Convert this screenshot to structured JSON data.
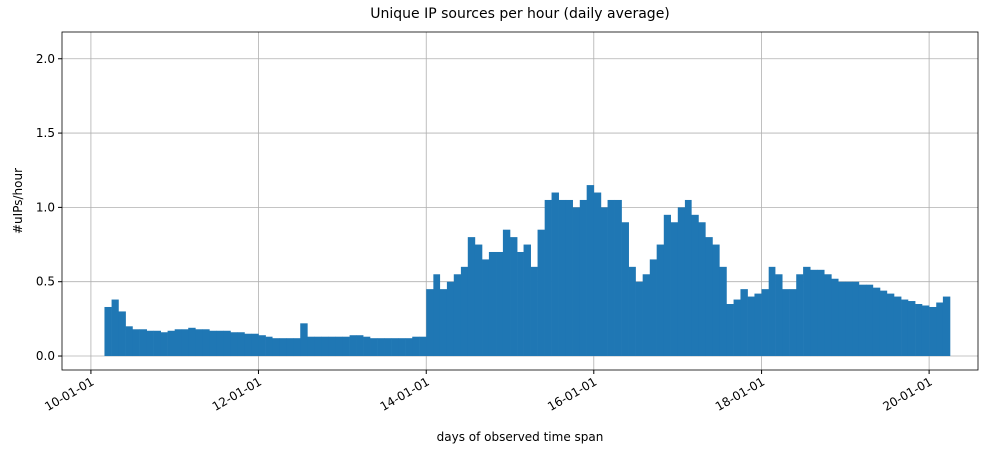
{
  "chart_data": {
    "type": "bar",
    "title": "Unique IP sources per hour (daily average)",
    "x_label": "days of observed time span",
    "y_label": "#uIPs/hour",
    "color": "#1f77b4",
    "grid": true,
    "x": [
      "10-03-01",
      "10-04-01",
      "10-05-01",
      "10-06-01",
      "10-07-01",
      "10-08-01",
      "10-09-01",
      "10-10-01",
      "10-11-01",
      "10-12-01",
      "11-01-01",
      "11-02-01",
      "11-03-01",
      "11-04-01",
      "11-05-01",
      "11-06-01",
      "11-07-01",
      "11-08-01",
      "11-09-01",
      "11-10-01",
      "11-11-01",
      "11-12-01",
      "12-01-01",
      "12-02-01",
      "12-03-01",
      "12-04-01",
      "12-05-01",
      "12-06-01",
      "12-07-01",
      "12-08-01",
      "12-09-01",
      "12-10-01",
      "12-11-01",
      "12-12-01",
      "13-01-01",
      "13-02-01",
      "13-03-01",
      "13-04-01",
      "13-05-01",
      "13-06-01",
      "13-07-01",
      "13-08-01",
      "13-09-01",
      "13-10-01",
      "13-11-01",
      "13-12-01",
      "14-01-01",
      "14-02-01",
      "14-03-01",
      "14-04-01",
      "14-05-01",
      "14-06-01",
      "14-07-01",
      "14-08-01",
      "14-09-01",
      "14-10-01",
      "14-11-01",
      "14-12-01",
      "15-01-01",
      "15-02-01",
      "15-03-01",
      "15-04-01",
      "15-05-01",
      "15-06-01",
      "15-07-01",
      "15-08-01",
      "15-09-01",
      "15-10-01",
      "15-11-01",
      "15-12-01",
      "16-01-01",
      "16-02-01",
      "16-03-01",
      "16-04-01",
      "16-05-01",
      "16-06-01",
      "16-07-01",
      "16-08-01",
      "16-09-01",
      "16-10-01",
      "16-11-01",
      "16-12-01",
      "17-01-01",
      "17-02-01",
      "17-03-01",
      "17-04-01",
      "17-05-01",
      "17-06-01",
      "17-07-01",
      "17-08-01",
      "17-09-01",
      "17-10-01",
      "17-11-01",
      "17-12-01",
      "18-01-01",
      "18-02-01",
      "18-03-01",
      "18-04-01",
      "18-05-01",
      "18-06-01",
      "18-07-01",
      "18-08-01",
      "18-09-01",
      "18-10-01",
      "18-11-01",
      "18-12-01",
      "19-01-01",
      "19-02-01",
      "19-03-01",
      "19-04-01",
      "19-05-01",
      "19-06-01",
      "19-07-01",
      "19-08-01",
      "19-09-01",
      "19-10-01",
      "19-11-01",
      "19-12-01",
      "20-01-01",
      "20-02-01",
      "20-03-01"
    ],
    "values": [
      0.33,
      0.38,
      0.3,
      0.2,
      0.18,
      0.18,
      0.17,
      0.17,
      0.16,
      0.17,
      0.18,
      0.18,
      0.19,
      0.18,
      0.18,
      0.17,
      0.17,
      0.17,
      0.16,
      0.16,
      0.15,
      0.15,
      0.14,
      0.13,
      0.12,
      0.12,
      0.12,
      0.12,
      0.22,
      0.13,
      0.13,
      0.13,
      0.13,
      0.13,
      0.13,
      0.14,
      0.14,
      0.13,
      0.12,
      0.12,
      0.12,
      0.12,
      0.12,
      0.12,
      0.13,
      0.13,
      0.45,
      0.55,
      0.45,
      0.5,
      0.55,
      0.6,
      0.8,
      0.75,
      0.65,
      0.7,
      0.7,
      0.85,
      0.8,
      0.7,
      0.75,
      0.6,
      0.85,
      1.05,
      1.1,
      1.05,
      1.05,
      1.0,
      1.05,
      1.15,
      1.1,
      1.0,
      1.05,
      1.05,
      0.9,
      0.6,
      0.5,
      0.55,
      0.65,
      0.75,
      0.95,
      0.9,
      1.0,
      1.05,
      0.95,
      0.9,
      0.8,
      0.75,
      0.6,
      0.35,
      0.38,
      0.45,
      0.4,
      0.42,
      0.45,
      0.6,
      0.55,
      0.45,
      0.45,
      0.55,
      0.6,
      0.58,
      0.58,
      0.55,
      0.52,
      0.5,
      0.5,
      0.5,
      0.48,
      0.48,
      0.46,
      0.44,
      0.42,
      0.4,
      0.38,
      0.37,
      0.35,
      0.34,
      0.33,
      0.36,
      0.4
    ],
    "xlim": [
      "09-08-28",
      "20-08-01"
    ],
    "xticks": [
      "10-01-01",
      "12-01-01",
      "14-01-01",
      "16-01-01",
      "18-01-01",
      "20-01-01"
    ],
    "ylim": [
      -0.094,
      2.18
    ],
    "yticks": [
      {
        "value": 0,
        "label": "0.0"
      },
      0.5,
      {
        "value": 1,
        "label": "1.0"
      },
      1.5,
      {
        "value": 2,
        "label": "2.0"
      }
    ]
  }
}
